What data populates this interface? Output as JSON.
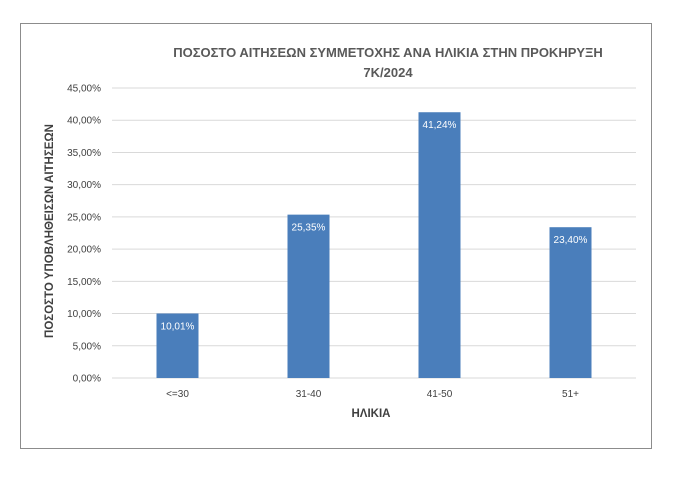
{
  "chart_data": {
    "type": "bar",
    "title_lines": [
      "ΠΟΣΟΣΤΟ ΑΙΤΗΣΕΩΝ ΣΥΜΜΕΤΟΧΗΣ ΑΝΑ ΗΛΙΚΙΑ ΣΤΗΝ ΠΡΟΚΗΡΥΞΗ",
      "7Κ/2024"
    ],
    "xlabel": "ΗΛΙΚΙΑ",
    "ylabel": "ΠΟΣΟΣΤΟ ΥΠΟΒΛΗΘΕΙΣΩΝ ΑΙΤΗΣΕΩΝ",
    "categories": [
      "<=30",
      "31-40",
      "41-50",
      "51+"
    ],
    "values": [
      10.01,
      25.35,
      41.24,
      23.4
    ],
    "data_labels": [
      "10,01%",
      "25,35%",
      "41,24%",
      "23,40%"
    ],
    "ylim": [
      0,
      45
    ],
    "y_ticks": [
      0,
      5,
      10,
      15,
      20,
      25,
      30,
      35,
      40,
      45
    ],
    "y_tick_labels": [
      "0,00%",
      "5,00%",
      "10,00%",
      "15,00%",
      "20,00%",
      "25,00%",
      "30,00%",
      "35,00%",
      "40,00%",
      "45,00%"
    ],
    "grid": true,
    "legend": false,
    "bar_color": "#4a7ebb",
    "grid_color": "#d9d9d9"
  }
}
